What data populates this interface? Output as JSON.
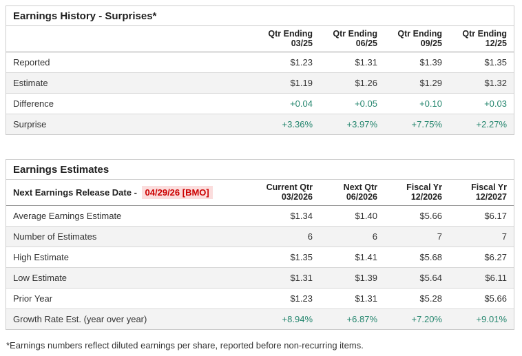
{
  "colors": {
    "positive_green": "#23856d",
    "alert_red": "#cc0000",
    "alert_red_bg": "#fbdddd"
  },
  "earnings_history": {
    "title": "Earnings History - Surprises*",
    "columns": [
      "Qtr Ending\n03/25",
      "Qtr Ending\n06/25",
      "Qtr Ending\n09/25",
      "Qtr Ending\n12/25"
    ],
    "rows": [
      {
        "label": "Reported",
        "values": [
          "$1.23",
          "$1.31",
          "$1.39",
          "$1.35"
        ],
        "positive": false
      },
      {
        "label": "Estimate",
        "values": [
          "$1.19",
          "$1.26",
          "$1.29",
          "$1.32"
        ],
        "positive": false
      },
      {
        "label": "Difference",
        "values": [
          "+0.04",
          "+0.05",
          "+0.10",
          "+0.03"
        ],
        "positive": true
      },
      {
        "label": "Surprise",
        "values": [
          "+3.36%",
          "+3.97%",
          "+7.75%",
          "+2.27%"
        ],
        "positive": true
      }
    ]
  },
  "earnings_estimates": {
    "title": "Earnings Estimates",
    "release_note": {
      "label": "Next Earnings Release Date -",
      "value": "04/29/26 [BMO]"
    },
    "columns": [
      "Current Qtr\n03/2026",
      "Next Qtr\n06/2026",
      "Fiscal Yr\n12/2026",
      "Fiscal Yr\n12/2027"
    ],
    "rows": [
      {
        "label": "Average Earnings Estimate",
        "values": [
          "$1.34",
          "$1.40",
          "$5.66",
          "$6.17"
        ],
        "positive": false
      },
      {
        "label": "Number of Estimates",
        "values": [
          "6",
          "6",
          "7",
          "7"
        ],
        "positive": false
      },
      {
        "label": "High Estimate",
        "values": [
          "$1.35",
          "$1.41",
          "$5.68",
          "$6.27"
        ],
        "positive": false
      },
      {
        "label": "Low Estimate",
        "values": [
          "$1.31",
          "$1.39",
          "$5.64",
          "$6.11"
        ],
        "positive": false
      },
      {
        "label": "Prior Year",
        "values": [
          "$1.23",
          "$1.31",
          "$5.28",
          "$5.66"
        ],
        "positive": false
      },
      {
        "label": "Growth Rate Est. (year over year)",
        "values": [
          "+8.94%",
          "+6.87%",
          "+7.20%",
          "+9.01%"
        ],
        "positive": true
      }
    ]
  },
  "footnote": "*Earnings numbers reflect diluted earnings per share, reported before non-recurring items."
}
